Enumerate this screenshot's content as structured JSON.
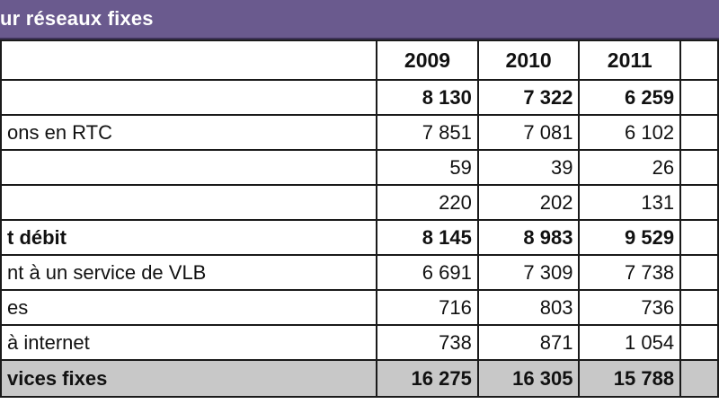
{
  "header": {
    "title": "ur réseaux fixes"
  },
  "columns": [
    "",
    "2009",
    "2010",
    "2011"
  ],
  "rows": [
    {
      "label": "",
      "v2009": "8 130",
      "v2010": "7 322",
      "v2011": "6 259",
      "bold": true
    },
    {
      "label": "ons en RTC",
      "v2009": "7 851",
      "v2010": "7 081",
      "v2011": "6 102",
      "bold": false
    },
    {
      "label": "",
      "v2009": "59",
      "v2010": "39",
      "v2011": "26",
      "bold": false
    },
    {
      "label": "",
      "v2009": "220",
      "v2010": "202",
      "v2011": "131",
      "bold": false
    },
    {
      "label": "t débit",
      "v2009": "8 145",
      "v2010": "8 983",
      "v2011": "9 529",
      "bold": true
    },
    {
      "label": "nt à un service de VLB",
      "v2009": "6 691",
      "v2010": "7 309",
      "v2011": "7 738",
      "bold": false
    },
    {
      "label": "es",
      "v2009": "716",
      "v2010": "803",
      "v2011": "736",
      "bold": false
    },
    {
      "label": "à internet",
      "v2009": "738",
      "v2010": "871",
      "v2011": "1 054",
      "bold": false
    }
  ],
  "total": {
    "label": "vices fixes",
    "v2009": "16 275",
    "v2010": "16 305",
    "v2011": "15 788"
  }
}
